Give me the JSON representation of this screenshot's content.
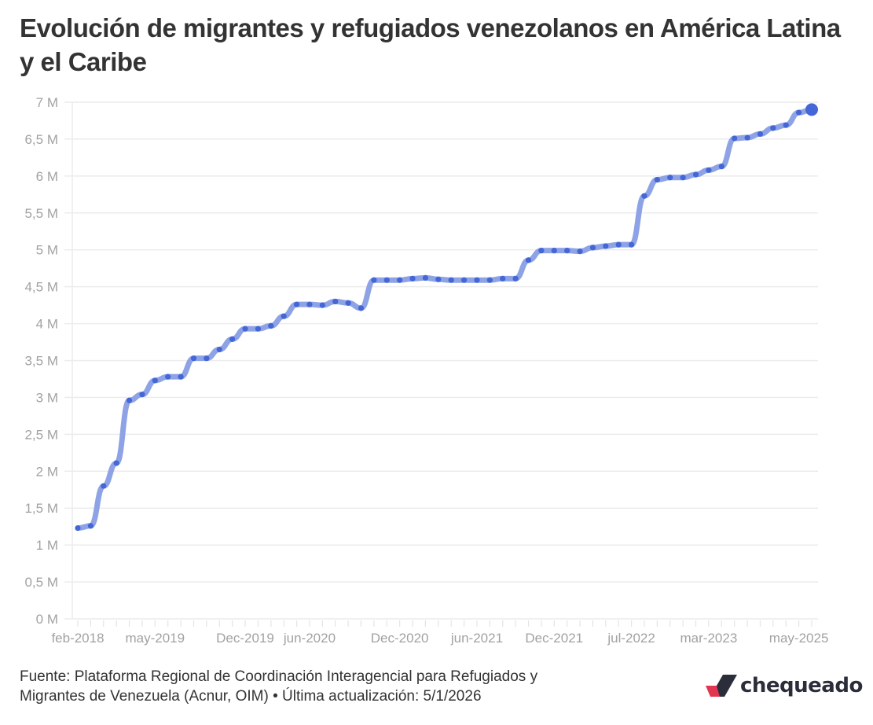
{
  "title": "Evolución de migrantes y refugiados venezolanos en América Latina y el Caribe",
  "footer": {
    "source_line1": "Fuente: Plataforma Regional de Coordinación Interagencial para Refugiados y",
    "source_line2": "Migrantes de Venezuela (Acnur, OIM) • Última actualización: 5/1/2026"
  },
  "logo": {
    "text": "chequeado",
    "icon": "check-mark-icon",
    "colors": {
      "red": "#e2354f",
      "dark": "#2b2d3a"
    }
  },
  "colors": {
    "line": "#8ea3e6",
    "point": "#4466d6",
    "grid": "#ececec",
    "axis_text": "#a2a2a2"
  },
  "chart_data": {
    "type": "line",
    "title": "Evolución de migrantes y refugiados venezolanos en América Latina y el Caribe",
    "xlabel": "",
    "ylabel": "",
    "ylim": [
      0,
      7000000
    ],
    "grid": true,
    "legend": "none",
    "y_ticks": [
      0,
      500000,
      1000000,
      1500000,
      2000000,
      2500000,
      3000000,
      3500000,
      4000000,
      4500000,
      5000000,
      5500000,
      6000000,
      6500000,
      7000000
    ],
    "y_tick_labels": [
      "0 M",
      "0,5 M",
      "1 M",
      "1,5 M",
      "2 M",
      "2,5 M",
      "3 M",
      "3,5 M",
      "4 M",
      "4,5 M",
      "5 M",
      "5,5 M",
      "6 M",
      "6,5 M",
      "7 M"
    ],
    "x_tick_labels": [
      {
        "index": 0,
        "label": "feb-2018"
      },
      {
        "index": 6,
        "label": "may-2019"
      },
      {
        "index": 13,
        "label": "Dec-2019"
      },
      {
        "index": 18,
        "label": "jun-2020"
      },
      {
        "index": 25,
        "label": "Dec-2020"
      },
      {
        "index": 31,
        "label": "jun-2021"
      },
      {
        "index": 37,
        "label": "Dec-2021"
      },
      {
        "index": 43,
        "label": "jul-2022"
      },
      {
        "index": 49,
        "label": "mar-2023"
      },
      {
        "index": 56,
        "label": "may-2025"
      }
    ],
    "series": [
      {
        "name": "Migrantes y refugiados venezolanos",
        "values": [
          1230000,
          1260000,
          1800000,
          2110000,
          2960000,
          3040000,
          3230000,
          3280000,
          3280000,
          3530000,
          3530000,
          3650000,
          3790000,
          3930000,
          3930000,
          3970000,
          4100000,
          4260000,
          4260000,
          4250000,
          4300000,
          4280000,
          4210000,
          4590000,
          4590000,
          4590000,
          4610000,
          4620000,
          4600000,
          4590000,
          4590000,
          4590000,
          4590000,
          4610000,
          4610000,
          4860000,
          4990000,
          4990000,
          4990000,
          4980000,
          5030000,
          5050000,
          5070000,
          5070000,
          5730000,
          5950000,
          5980000,
          5980000,
          6020000,
          6080000,
          6130000,
          6510000,
          6520000,
          6570000,
          6650000,
          6690000,
          6860000,
          6900000
        ]
      }
    ]
  }
}
